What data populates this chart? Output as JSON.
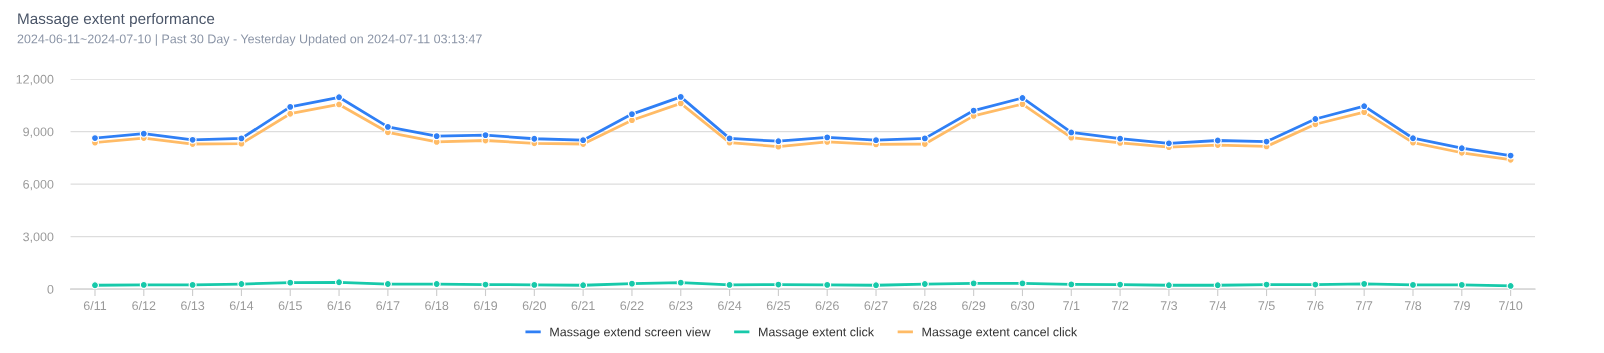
{
  "chart_data": {
    "type": "line",
    "title": "Massage extent performance",
    "subtitle": "2024-06-11~2024-07-10 | Past 30 Day - Yesterday Updated on 2024-07-11 03:13:47",
    "categories": [
      "6/11",
      "6/12",
      "6/13",
      "6/14",
      "6/15",
      "6/16",
      "6/17",
      "6/18",
      "6/19",
      "6/20",
      "6/21",
      "6/22",
      "6/23",
      "6/24",
      "6/25",
      "6/26",
      "6/27",
      "6/28",
      "6/29",
      "6/30",
      "7/1",
      "7/2",
      "7/3",
      "7/4",
      "7/5",
      "7/6",
      "7/7",
      "7/8",
      "7/9",
      "7/10"
    ],
    "series": [
      {
        "name": "Massage extend screen view",
        "color": "#2f7ff5",
        "values": [
          8630,
          8880,
          8530,
          8610,
          10410,
          10960,
          9270,
          8740,
          8800,
          8590,
          8510,
          10000,
          10980,
          8610,
          8450,
          8670,
          8510,
          8610,
          10200,
          10920,
          8950,
          8600,
          8330,
          8490,
          8430,
          9720,
          10450,
          8620,
          8050,
          7630
        ]
      },
      {
        "name": "Massage extent click",
        "color": "#17c9aa",
        "values": [
          220,
          240,
          240,
          290,
          370,
          390,
          290,
          290,
          260,
          240,
          220,
          310,
          370,
          240,
          260,
          240,
          220,
          290,
          330,
          330,
          270,
          260,
          220,
          220,
          260,
          260,
          300,
          240,
          240,
          180
        ]
      },
      {
        "name": "Massage extent cancel click",
        "color": "#ffbb66",
        "values": [
          8370,
          8630,
          8290,
          8310,
          10020,
          10550,
          8960,
          8410,
          8490,
          8330,
          8290,
          9650,
          10610,
          8370,
          8140,
          8410,
          8270,
          8290,
          9900,
          10570,
          8650,
          8350,
          8110,
          8230,
          8150,
          9420,
          10110,
          8370,
          7790,
          7390
        ]
      }
    ],
    "ylim": [
      0,
      12000
    ],
    "yticks": [
      {
        "value": 0,
        "label": "0"
      },
      {
        "value": 3000,
        "label": "3,000"
      },
      {
        "value": 6000,
        "label": "6,000"
      },
      {
        "value": 9000,
        "label": "9,000"
      },
      {
        "value": 12000,
        "label": "12,000"
      }
    ],
    "grid": "y",
    "legend": "bottom",
    "marker": "circle",
    "line_style": "solid"
  }
}
